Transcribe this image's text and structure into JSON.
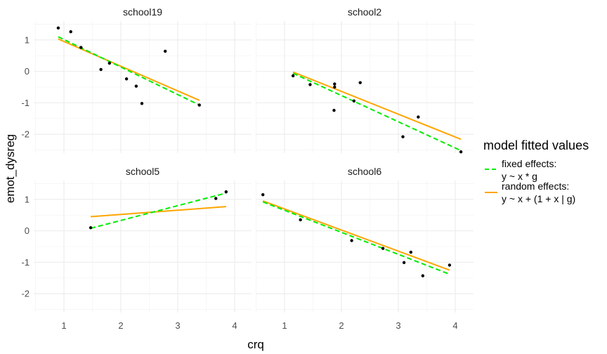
{
  "chart_data": {
    "type": "scatter",
    "xlabel": "crq",
    "ylabel": "emot_dysreg",
    "xlim": [
      0.55,
      4.2
    ],
    "ylim": [
      -2.6,
      1.6
    ],
    "x_ticks": [
      1,
      2,
      3,
      4
    ],
    "y_ticks": [
      -2,
      -1,
      0,
      1
    ],
    "x_tick_labels": [
      "1",
      "2",
      "3",
      "4"
    ],
    "y_tick_labels": [
      "-2",
      "-1",
      "0",
      "1"
    ],
    "grid": true,
    "legend": {
      "title": "model fitted values",
      "placement": "right",
      "entries": [
        {
          "line1": "fixed effects:",
          "line2": "y ~ x * g",
          "color": "#00ee00",
          "dash": "dashed"
        },
        {
          "line1": "random effects:",
          "line2": "y ~ x + (1 + x | g)",
          "color": "#ffa500",
          "dash": "solid"
        }
      ]
    },
    "panels": [
      {
        "name": "school19",
        "points": [
          [
            0.9,
            1.38
          ],
          [
            1.12,
            1.26
          ],
          [
            1.3,
            0.76
          ],
          [
            1.65,
            0.06
          ],
          [
            1.8,
            0.26
          ],
          [
            2.1,
            -0.24
          ],
          [
            2.27,
            -0.47
          ],
          [
            2.37,
            -1.02
          ],
          [
            2.78,
            0.64
          ],
          [
            3.38,
            -1.07
          ]
        ],
        "fixed": [
          [
            0.9,
            1.1
          ],
          [
            3.38,
            -1.07
          ]
        ],
        "random": [
          [
            0.9,
            1.03
          ],
          [
            3.38,
            -0.92
          ]
        ]
      },
      {
        "name": "school2",
        "points": [
          [
            1.15,
            -0.14
          ],
          [
            1.45,
            -0.42
          ],
          [
            1.87,
            -1.24
          ],
          [
            1.88,
            -0.5
          ],
          [
            1.88,
            -0.4
          ],
          [
            2.22,
            -0.94
          ],
          [
            2.33,
            -0.36
          ],
          [
            3.08,
            -2.08
          ],
          [
            3.35,
            -1.45
          ],
          [
            4.1,
            -2.56
          ]
        ],
        "fixed": [
          [
            1.15,
            -0.06
          ],
          [
            4.1,
            -2.52
          ]
        ],
        "random": [
          [
            1.15,
            -0.02
          ],
          [
            4.1,
            -2.16
          ]
        ]
      },
      {
        "name": "school5",
        "points": [
          [
            1.47,
            0.1
          ],
          [
            3.67,
            1.03
          ],
          [
            3.85,
            1.24
          ]
        ],
        "fixed": [
          [
            1.47,
            0.08
          ],
          [
            3.85,
            1.2
          ]
        ],
        "random": [
          [
            1.47,
            0.45
          ],
          [
            3.85,
            0.77
          ]
        ]
      },
      {
        "name": "school6",
        "points": [
          [
            0.62,
            1.15
          ],
          [
            1.28,
            0.35
          ],
          [
            2.18,
            -0.31
          ],
          [
            2.73,
            -0.56
          ],
          [
            3.1,
            -1.01
          ],
          [
            3.22,
            -0.68
          ],
          [
            3.43,
            -1.43
          ],
          [
            3.9,
            -1.09
          ]
        ],
        "fixed": [
          [
            0.62,
            0.92
          ],
          [
            3.9,
            -1.38
          ]
        ],
        "random": [
          [
            0.62,
            0.95
          ],
          [
            3.9,
            -1.25
          ]
        ]
      }
    ]
  }
}
